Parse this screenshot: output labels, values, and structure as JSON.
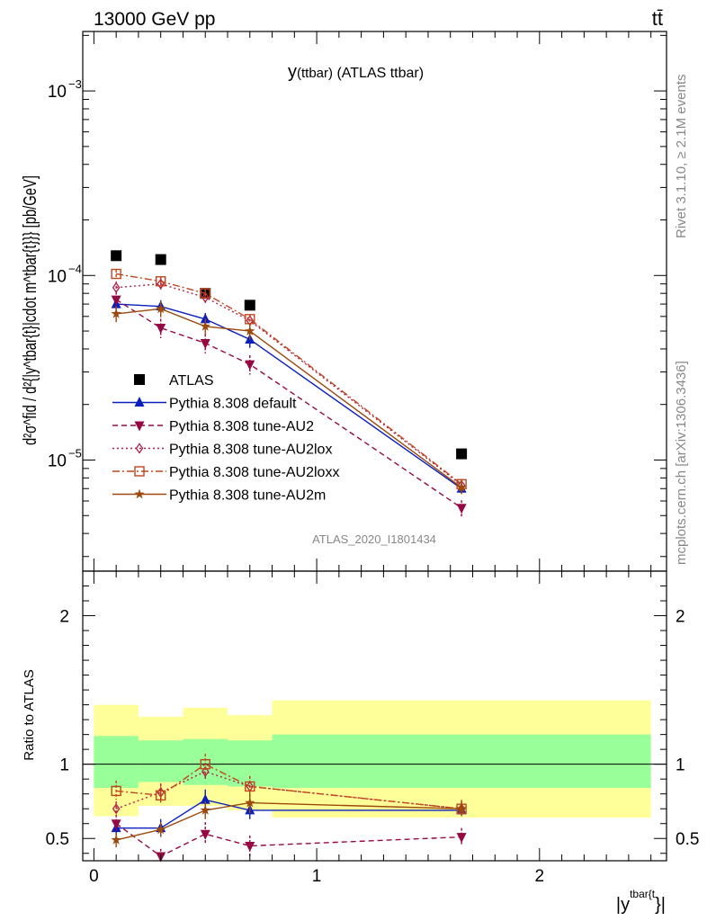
{
  "header": {
    "energy_label": "13000 GeV pp",
    "process_label": "tt̄"
  },
  "side_labels": {
    "rivet": "Rivet 3.1.10, ≥ 2.1M events",
    "source": "mcplots.cern.ch [arXiv:1306.3436]"
  },
  "chart_data": [
    {
      "type": "line",
      "panel": "main",
      "title_main": "y",
      "title_sub": "(ttbar)",
      "title_tail": " (ATLAS ttbar)",
      "watermark": "ATLAS_2020_I1801434",
      "ylabel": "d²σ^fid / d²{|y^tbar{t}|cdot m^tbar{t}}} [pb/GeV]",
      "yscale": "log",
      "ylim": [
        2.5e-06,
        0.0021
      ],
      "xlim": [
        -0.05,
        2.57
      ],
      "y_ticks": [
        {
          "value": 1e-05,
          "base": "10",
          "exp": "−5"
        },
        {
          "value": 0.0001,
          "base": "10",
          "exp": "−4"
        },
        {
          "value": 0.001,
          "base": "10",
          "exp": "−3"
        }
      ],
      "legend_position": "middle-left",
      "x_bins": [
        0.0,
        0.2,
        0.4,
        0.6,
        0.8,
        2.5
      ],
      "series": [
        {
          "name": "ATLAS",
          "style": "data",
          "color": "#000000",
          "x": [
            0.1,
            0.3,
            0.5,
            0.7,
            1.65
          ],
          "y": [
            0.000128,
            0.000122,
            8e-05,
            6.9e-05,
            1.08e-05
          ]
        },
        {
          "name": "Pythia 8.308 default",
          "style": "solid",
          "marker": "triangle-up",
          "color": "#0b1fbf",
          "x": [
            0.1,
            0.3,
            0.5,
            0.7,
            1.65
          ],
          "y": [
            7e-05,
            6.8e-05,
            5.8e-05,
            4.5e-05,
            7e-06
          ],
          "err": [
            0.08,
            0.08,
            0.08,
            0.1,
            0.06
          ]
        },
        {
          "name": "Pythia 8.308 tune-AU2",
          "style": "dashed",
          "marker": "triangle-down",
          "color": "#950843",
          "x": [
            0.1,
            0.3,
            0.5,
            0.7,
            1.65
          ],
          "y": [
            7.4e-05,
            5.2e-05,
            4.3e-05,
            3.3e-05,
            5.5e-06
          ],
          "err": [
            0.1,
            0.12,
            0.12,
            0.12,
            0.1
          ]
        },
        {
          "name": "Pythia 8.308 tune-AU2lox",
          "style": "dotted",
          "marker": "diamond-open",
          "color": "#b0204a",
          "x": [
            0.1,
            0.3,
            0.5,
            0.7,
            1.65
          ],
          "y": [
            8.6e-05,
            9e-05,
            7.6e-05,
            5.7e-05,
            7.3e-06
          ],
          "err": [
            0.08,
            0.08,
            0.08,
            0.08,
            0.08
          ]
        },
        {
          "name": "Pythia 8.308 tune-AU2loxx",
          "style": "dashdot",
          "marker": "square-open",
          "color": "#c2451c",
          "x": [
            0.1,
            0.3,
            0.5,
            0.7,
            1.65
          ],
          "y": [
            0.000102,
            9.3e-05,
            8e-05,
            5.8e-05,
            7.4e-06
          ],
          "err": [
            0.05,
            0.06,
            0.06,
            0.06,
            0.06
          ]
        },
        {
          "name": "Pythia 8.308 tune-AU2m",
          "style": "solid",
          "marker": "star",
          "color": "#9b4a0c",
          "x": [
            0.1,
            0.3,
            0.5,
            0.7,
            1.65
          ],
          "y": [
            6.2e-05,
            6.6e-05,
            5.3e-05,
            5e-05,
            7.1e-06
          ],
          "err": [
            0.1,
            0.1,
            0.1,
            0.1,
            0.08
          ]
        }
      ]
    },
    {
      "type": "line",
      "panel": "ratio",
      "ylabel": "Ratio to ATLAS",
      "xlabel_main": "|y",
      "xlabel_sup": "tbar{t",
      "xlabel_tail": "}|",
      "ylim": [
        0.35,
        2.3
      ],
      "xlim": [
        -0.05,
        2.57
      ],
      "y_ticks": [
        0.5,
        1,
        2
      ],
      "x_ticks": [
        0,
        1,
        2
      ],
      "bands": {
        "bins": [
          0.0,
          0.2,
          0.4,
          0.6,
          0.8,
          2.5
        ],
        "green_low": [
          0.84,
          0.88,
          0.86,
          0.85,
          0.84
        ],
        "green_high": [
          1.19,
          1.16,
          1.17,
          1.16,
          1.2
        ],
        "yellow_low": [
          0.65,
          0.72,
          0.72,
          0.69,
          0.64
        ],
        "yellow_high": [
          1.4,
          1.32,
          1.38,
          1.33,
          1.43
        ]
      },
      "series": [
        {
          "name": "Pythia 8.308 default",
          "color": "#0b1fbf",
          "style": "solid",
          "marker": "triangle-up",
          "x": [
            0.1,
            0.3,
            0.5,
            0.7,
            1.65
          ],
          "y": [
            0.57,
            0.57,
            0.76,
            0.69,
            0.69
          ],
          "lo": [
            0.52,
            0.51,
            0.69,
            0.63,
            0.66
          ],
          "hi": [
            0.62,
            0.63,
            0.83,
            0.76,
            0.73
          ]
        },
        {
          "name": "Pythia 8.308 tune-AU2",
          "color": "#950843",
          "style": "dashed",
          "marker": "triangle-down",
          "x": [
            0.1,
            0.3,
            0.5,
            0.7,
            1.65
          ],
          "y": [
            0.6,
            0.38,
            0.53,
            0.45,
            0.51
          ],
          "lo": [
            0.53,
            0.34,
            0.46,
            0.38,
            0.46
          ],
          "hi": [
            0.66,
            0.43,
            0.61,
            0.52,
            0.57
          ]
        },
        {
          "name": "Pythia 8.308 tune-AU2lox",
          "color": "#b0204a",
          "style": "dotted",
          "marker": "diamond-open",
          "x": [
            0.1,
            0.3,
            0.5,
            0.7,
            1.65
          ],
          "y": [
            0.7,
            0.81,
            0.95,
            0.85,
            0.7
          ],
          "lo": [
            0.65,
            0.75,
            0.89,
            0.79,
            0.66
          ],
          "hi": [
            0.75,
            0.87,
            1.01,
            0.92,
            0.74
          ]
        },
        {
          "name": "Pythia 8.308 tune-AU2loxx",
          "color": "#c2451c",
          "style": "dashdot",
          "marker": "square-open",
          "x": [
            0.1,
            0.3,
            0.5,
            0.7,
            1.65
          ],
          "y": [
            0.82,
            0.79,
            1.0,
            0.85,
            0.7
          ],
          "lo": [
            0.76,
            0.73,
            0.93,
            0.78,
            0.65
          ],
          "hi": [
            0.89,
            0.85,
            1.07,
            0.92,
            0.76
          ]
        },
        {
          "name": "Pythia 8.308 tune-AU2m",
          "color": "#9b4a0c",
          "style": "solid",
          "marker": "star",
          "x": [
            0.1,
            0.3,
            0.5,
            0.7,
            1.65
          ],
          "y": [
            0.49,
            0.56,
            0.69,
            0.74,
            0.7
          ],
          "lo": [
            0.44,
            0.51,
            0.63,
            0.67,
            0.65
          ],
          "hi": [
            0.54,
            0.61,
            0.75,
            0.81,
            0.75
          ]
        }
      ]
    }
  ]
}
